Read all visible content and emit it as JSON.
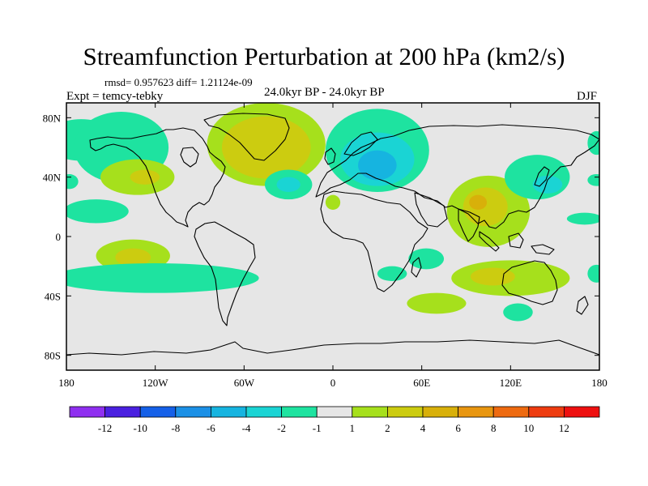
{
  "colors": {
    "ocean_bg": "#e6e6e6",
    "coastline": "#000000",
    "palette": [
      "#8f2ff0",
      "#4a20e0",
      "#1560e8",
      "#1b90e6",
      "#16b4e0",
      "#1ad4d4",
      "#1ee3a0",
      "#e6e6e6",
      "#a6e01c",
      "#cccc10",
      "#d8b00a",
      "#e89610",
      "#ee6a10",
      "#ee3c10",
      "#ee1010"
    ]
  },
  "chart_data": {
    "type": "contour_map",
    "title": "Streamfunction Perturbation at 200 hPa (km2/s)",
    "stats": "rmsd= 0.957623 diff= 1.21124e-09",
    "experiment": "Expt = temcy-tebky",
    "period": "24.0kyr BP - 24.0kyr BP",
    "season": "DJF",
    "xlim": [
      -180,
      180
    ],
    "ylim": [
      -90,
      90
    ],
    "x_ticks": [
      {
        "value": -180,
        "label": "180"
      },
      {
        "value": -120,
        "label": "120W"
      },
      {
        "value": -60,
        "label": "60W"
      },
      {
        "value": 0,
        "label": "0"
      },
      {
        "value": 60,
        "label": "60E"
      },
      {
        "value": 120,
        "label": "120E"
      },
      {
        "value": 180,
        "label": "180"
      }
    ],
    "y_ticks": [
      {
        "value": 80,
        "label": "80N"
      },
      {
        "value": 40,
        "label": "40N"
      },
      {
        "value": 0,
        "label": "0"
      },
      {
        "value": -40,
        "label": "40S"
      },
      {
        "value": -80,
        "label": "80S"
      }
    ],
    "colorbar_labels": [
      "-12",
      "-10",
      "-8",
      "-6",
      "-4",
      "-2",
      "-1",
      "1",
      "2",
      "4",
      "6",
      "8",
      "10",
      "12"
    ],
    "anomalies": [
      {
        "lon": -170,
        "lat": 65,
        "rlon": 25,
        "rlat": 14,
        "level": "-1"
      },
      {
        "lon": -178,
        "lat": 37,
        "rlon": 6,
        "rlat": 5,
        "level": "-1"
      },
      {
        "lon": -160,
        "lat": 17,
        "rlon": 22,
        "rlat": 8,
        "level": "-1"
      },
      {
        "lon": -135,
        "lat": -13,
        "rlon": 25,
        "rlat": 11,
        "level": "2"
      },
      {
        "lon": -135,
        "lat": -14,
        "rlon": 12,
        "rlat": 6,
        "level": "4"
      },
      {
        "lon": -120,
        "lat": -28,
        "rlon": 70,
        "rlat": 10,
        "level": "-1"
      },
      {
        "lon": -143,
        "lat": 60,
        "rlon": 32,
        "rlat": 24,
        "level": "-1"
      },
      {
        "lon": -132,
        "lat": 40,
        "rlon": 25,
        "rlat": 12,
        "level": "2"
      },
      {
        "lon": -127,
        "lat": 40,
        "rlon": 10,
        "rlat": 5,
        "level": "4"
      },
      {
        "lon": -45,
        "lat": 62,
        "rlon": 40,
        "rlat": 28,
        "level": "2"
      },
      {
        "lon": -45,
        "lat": 60,
        "rlon": 30,
        "rlat": 21,
        "level": "4"
      },
      {
        "lon": -30,
        "lat": 35,
        "rlon": 16,
        "rlat": 10,
        "level": "-1"
      },
      {
        "lon": -30,
        "lat": 35,
        "rlon": 8,
        "rlat": 5,
        "level": "-2"
      },
      {
        "lon": 0,
        "lat": 23,
        "rlon": 5,
        "rlat": 5,
        "level": "2"
      },
      {
        "lon": 30,
        "lat": 58,
        "rlon": 35,
        "rlat": 28,
        "level": "-1"
      },
      {
        "lon": 30,
        "lat": 52,
        "rlon": 25,
        "rlat": 18,
        "level": "-2"
      },
      {
        "lon": 30,
        "lat": 48,
        "rlon": 13,
        "rlat": 10,
        "level": "-4"
      },
      {
        "lon": 40,
        "lat": -25,
        "rlon": 10,
        "rlat": 5,
        "level": "-1"
      },
      {
        "lon": 63,
        "lat": -15,
        "rlon": 12,
        "rlat": 7,
        "level": "-1"
      },
      {
        "lon": 105,
        "lat": 17,
        "rlon": 28,
        "rlat": 24,
        "level": "2"
      },
      {
        "lon": 103,
        "lat": 20,
        "rlon": 15,
        "rlat": 13,
        "level": "4"
      },
      {
        "lon": 98,
        "lat": 23,
        "rlon": 6,
        "rlat": 5,
        "level": "6"
      },
      {
        "lon": 138,
        "lat": 40,
        "rlon": 22,
        "rlat": 15,
        "level": "-1"
      },
      {
        "lon": 145,
        "lat": 35,
        "rlon": 10,
        "rlat": 6,
        "level": "-2"
      },
      {
        "lon": 120,
        "lat": -28,
        "rlon": 40,
        "rlat": 12,
        "level": "2"
      },
      {
        "lon": 108,
        "lat": -27,
        "rlon": 15,
        "rlat": 6,
        "level": "4"
      },
      {
        "lon": 125,
        "lat": -51,
        "rlon": 10,
        "rlat": 6,
        "level": "-1"
      },
      {
        "lon": 70,
        "lat": -45,
        "rlon": 20,
        "rlat": 7,
        "level": "2"
      },
      {
        "lon": 170,
        "lat": 12,
        "rlon": 12,
        "rlat": 4,
        "level": "-1"
      },
      {
        "lon": 178,
        "lat": 38,
        "rlon": 6,
        "rlat": 4,
        "level": "-1"
      },
      {
        "lon": 178,
        "lat": 63,
        "rlon": 6,
        "rlat": 8,
        "level": "-1"
      },
      {
        "lon": 178,
        "lat": -25,
        "rlon": 6,
        "rlat": 6,
        "level": "-1"
      }
    ]
  }
}
